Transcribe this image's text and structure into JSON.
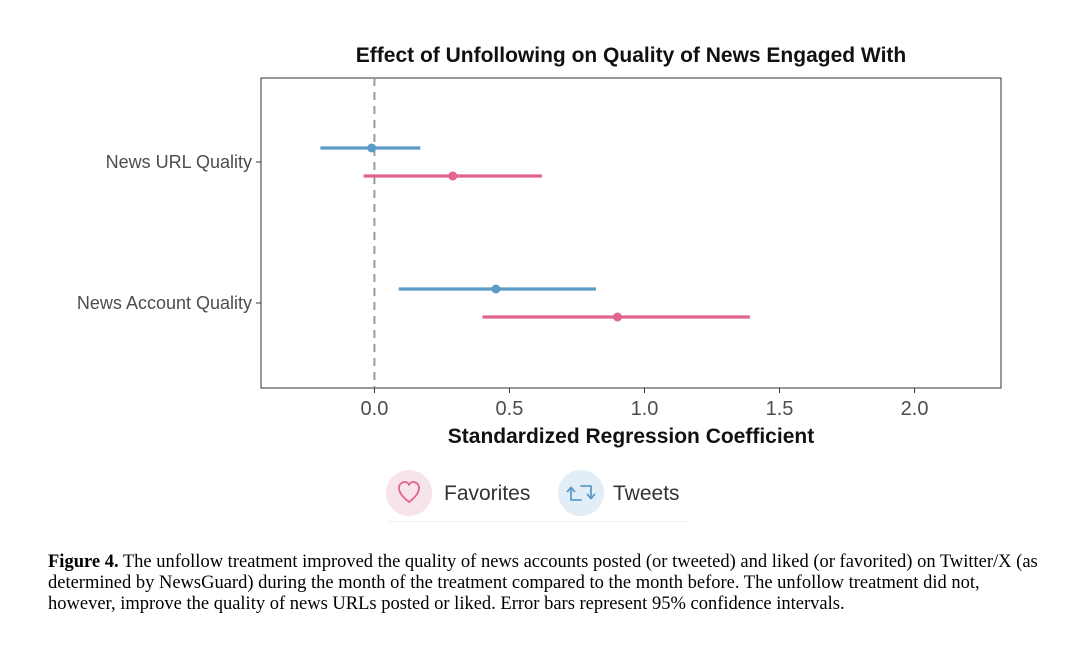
{
  "chart_data": {
    "type": "scatter",
    "title": "Effect of Unfollowing on Quality of News Engaged With",
    "xlabel": "Standardized Regression Coefficient",
    "ylabel": "",
    "categories": [
      "News URL Quality",
      "News Account Quality"
    ],
    "xlim": [
      -0.42,
      2.32
    ],
    "xticks": [
      "0.0",
      "0.5",
      "1.0",
      "1.5",
      "2.0"
    ],
    "reference_line": 0.0,
    "grid": false,
    "legend_position": "bottom",
    "series": [
      {
        "name": "Tweets",
        "color": "#5b9bc8",
        "estimate": [
          -0.01,
          0.45
        ],
        "ci_low": [
          -0.2,
          0.09
        ],
        "ci_high": [
          0.17,
          0.82
        ]
      },
      {
        "name": "Favorites",
        "color": "#e0648f",
        "estimate": [
          0.29,
          0.9
        ],
        "ci_low": [
          -0.04,
          0.4
        ],
        "ci_high": [
          0.62,
          1.39
        ]
      }
    ]
  },
  "legend": {
    "items": [
      {
        "label": "Favorites",
        "icon": "heart-icon",
        "color": "#e0648f",
        "bg": "#f7e3ea"
      },
      {
        "label": "Tweets",
        "icon": "retweet-icon",
        "color": "#5b9bc8",
        "bg": "#e2eef7"
      }
    ]
  },
  "caption": {
    "label": "Figure 4.",
    "text": " The unfollow treatment improved the quality of news accounts posted (or tweeted) and liked (or favorited) on Twitter/X (as determined by NewsGuard) during the month of the treatment compared to the month before. The unfollow treatment did not, however, improve the quality of news URLs posted or liked. Error bars represent 95% confidence intervals."
  }
}
